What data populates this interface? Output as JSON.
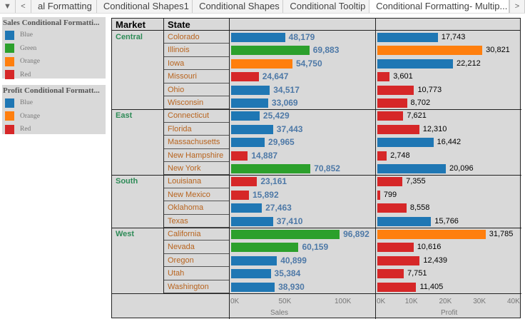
{
  "tabs": {
    "items": [
      "al Formatting",
      "Conditional Shapes1",
      "Conditional Shapes",
      "Conditional Tooltip",
      "Conditional Formatting- Multip..."
    ],
    "active": 4
  },
  "legends": [
    {
      "title": "Sales Conditional Formatti...",
      "items": [
        {
          "label": "Blue",
          "color": "#1f77b4"
        },
        {
          "label": "Green",
          "color": "#2ca02c"
        },
        {
          "label": "Orange",
          "color": "#ff7f0e"
        },
        {
          "label": "Red",
          "color": "#d62728"
        }
      ]
    },
    {
      "title": "Profit Conditional Formatt...",
      "items": [
        {
          "label": "Blue",
          "color": "#1f77b4"
        },
        {
          "label": "Orange",
          "color": "#ff7f0e"
        },
        {
          "label": "Red",
          "color": "#d62728"
        }
      ]
    }
  ],
  "headers": {
    "market": "Market",
    "state": "State"
  },
  "colors": {
    "Blue": "#1f77b4",
    "Green": "#2ca02c",
    "Orange": "#ff7f0e",
    "Red": "#d62728"
  },
  "chart_data": {
    "type": "bar",
    "markets": [
      {
        "name": "Central",
        "count": 6
      },
      {
        "name": "East",
        "count": 5
      },
      {
        "name": "South",
        "count": 4
      },
      {
        "name": "West",
        "count": 5
      }
    ],
    "rows": [
      {
        "state": "Colorado",
        "sales": 48179,
        "sales_label": "48,179",
        "sales_color": "Blue",
        "profit": 17743,
        "profit_label": "17,743",
        "profit_color": "Blue"
      },
      {
        "state": "Illinois",
        "sales": 69883,
        "sales_label": "69,883",
        "sales_color": "Green",
        "profit": 30821,
        "profit_label": "30,821",
        "profit_color": "Orange"
      },
      {
        "state": "Iowa",
        "sales": 54750,
        "sales_label": "54,750",
        "sales_color": "Orange",
        "profit": 22212,
        "profit_label": "22,212",
        "profit_color": "Blue"
      },
      {
        "state": "Missouri",
        "sales": 24647,
        "sales_label": "24,647",
        "sales_color": "Red",
        "profit": 3601,
        "profit_label": "3,601",
        "profit_color": "Red"
      },
      {
        "state": "Ohio",
        "sales": 34517,
        "sales_label": "34,517",
        "sales_color": "Blue",
        "profit": 10773,
        "profit_label": "10,773",
        "profit_color": "Red"
      },
      {
        "state": "Wisconsin",
        "sales": 33069,
        "sales_label": "33,069",
        "sales_color": "Blue",
        "profit": 8702,
        "profit_label": "8,702",
        "profit_color": "Red"
      },
      {
        "state": "Connecticut",
        "sales": 25429,
        "sales_label": "25,429",
        "sales_color": "Blue",
        "profit": 7621,
        "profit_label": "7,621",
        "profit_color": "Red"
      },
      {
        "state": "Florida",
        "sales": 37443,
        "sales_label": "37,443",
        "sales_color": "Blue",
        "profit": 12310,
        "profit_label": "12,310",
        "profit_color": "Red"
      },
      {
        "state": "Massachusetts",
        "sales": 29965,
        "sales_label": "29,965",
        "sales_color": "Blue",
        "profit": 16442,
        "profit_label": "16,442",
        "profit_color": "Blue"
      },
      {
        "state": "New Hampshire",
        "sales": 14887,
        "sales_label": "14,887",
        "sales_color": "Red",
        "profit": 2748,
        "profit_label": "2,748",
        "profit_color": "Red"
      },
      {
        "state": "New York",
        "sales": 70852,
        "sales_label": "70,852",
        "sales_color": "Green",
        "profit": 20096,
        "profit_label": "20,096",
        "profit_color": "Blue"
      },
      {
        "state": "Louisiana",
        "sales": 23161,
        "sales_label": "23,161",
        "sales_color": "Red",
        "profit": 7355,
        "profit_label": "7,355",
        "profit_color": "Red"
      },
      {
        "state": "New Mexico",
        "sales": 15892,
        "sales_label": "15,892",
        "sales_color": "Red",
        "profit": 799,
        "profit_label": "799",
        "profit_color": "Red"
      },
      {
        "state": "Oklahoma",
        "sales": 27463,
        "sales_label": "27,463",
        "sales_color": "Blue",
        "profit": 8558,
        "profit_label": "8,558",
        "profit_color": "Red"
      },
      {
        "state": "Texas",
        "sales": 37410,
        "sales_label": "37,410",
        "sales_color": "Blue",
        "profit": 15766,
        "profit_label": "15,766",
        "profit_color": "Blue"
      },
      {
        "state": "California",
        "sales": 96892,
        "sales_label": "96,892",
        "sales_color": "Green",
        "profit": 31785,
        "profit_label": "31,785",
        "profit_color": "Orange"
      },
      {
        "state": "Nevada",
        "sales": 60159,
        "sales_label": "60,159",
        "sales_color": "Green",
        "profit": 10616,
        "profit_label": "10,616",
        "profit_color": "Red"
      },
      {
        "state": "Oregon",
        "sales": 40899,
        "sales_label": "40,899",
        "sales_color": "Blue",
        "profit": 12439,
        "profit_label": "12,439",
        "profit_color": "Red"
      },
      {
        "state": "Utah",
        "sales": 35384,
        "sales_label": "35,384",
        "sales_color": "Blue",
        "profit": 7751,
        "profit_label": "7,751",
        "profit_color": "Red"
      },
      {
        "state": "Washington",
        "sales": 38930,
        "sales_label": "38,930",
        "sales_color": "Blue",
        "profit": 11405,
        "profit_label": "11,405",
        "profit_color": "Red"
      }
    ],
    "sales_axis": {
      "label": "Sales",
      "ticks": [
        {
          "v": 0,
          "t": "0K"
        },
        {
          "v": 50000,
          "t": "50K"
        },
        {
          "v": 100000,
          "t": "100K"
        }
      ],
      "range": [
        0,
        130000
      ]
    },
    "profit_axis": {
      "label": "Profit",
      "ticks": [
        {
          "v": 0,
          "t": "0K"
        },
        {
          "v": 10000,
          "t": "10K"
        },
        {
          "v": 20000,
          "t": "20K"
        },
        {
          "v": 30000,
          "t": "30K"
        },
        {
          "v": 40000,
          "t": "40K"
        }
      ],
      "range": [
        0,
        42000
      ]
    }
  }
}
